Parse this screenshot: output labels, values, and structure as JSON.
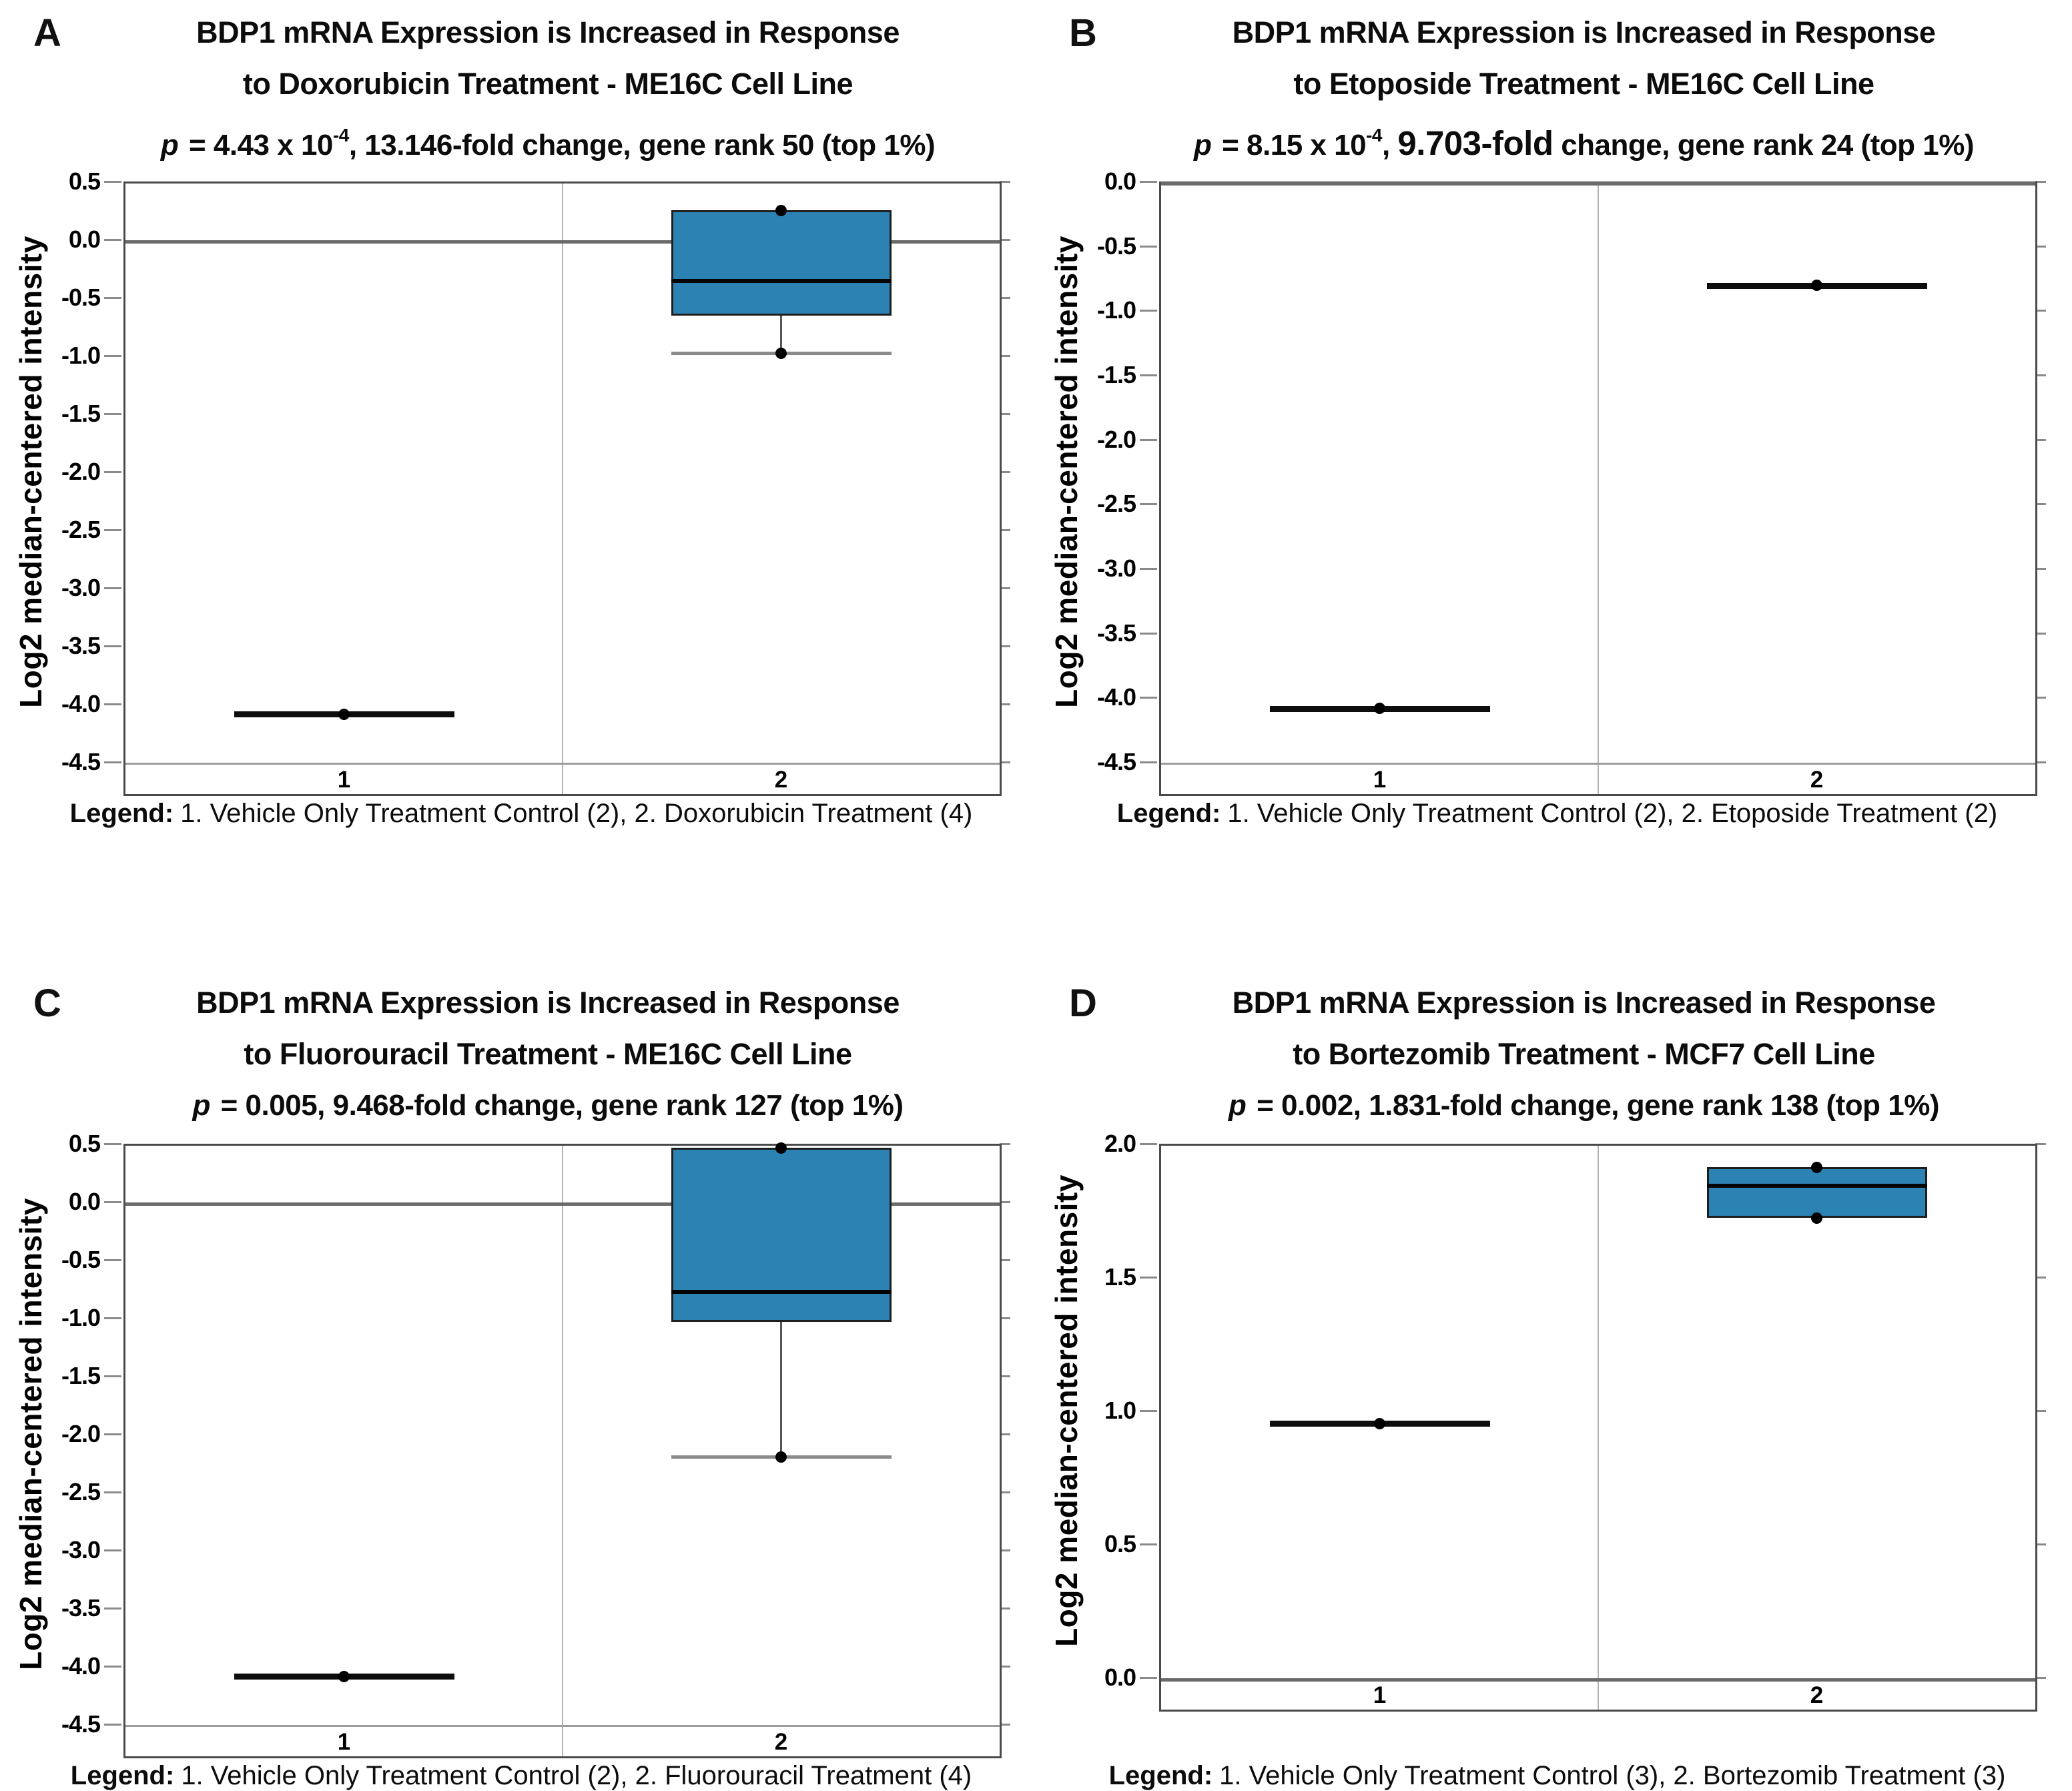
{
  "colors": {
    "box_fill": "#2d82b4",
    "box_border": "#1e1e1e",
    "frame_border": "#4a4a4a",
    "reference_strong": "#6a6a6a",
    "reference_light": "#9c9c9c",
    "divider": "#b4b4b4",
    "tick": "#8a8a8a",
    "glyph_black": "#0d0d0d",
    "text": "#000000"
  },
  "chart_data": [
    {
      "type": "box",
      "panel_label": "A",
      "title_lines": [
        "BDP1 mRNA Expression is Increased in Response",
        "to Doxorubicin Treatment - ME16C Cell Line"
      ],
      "stats": {
        "p_symbol": "p",
        "equals": " = ",
        "p_value": "4.43 x 10",
        "p_exponent": "-4",
        "separator": ", ",
        "fold_change": "13.146-fold",
        "fold_emphasized": false,
        "tail": " change, gene rank 50 (top 1%)"
      },
      "ylabel": "Log2 median-centered intensity",
      "ylim": [
        -4.5,
        0.5
      ],
      "yticks": [
        "0.5",
        "0.0",
        "-0.5",
        "-1.0",
        "-1.5",
        "-2.0",
        "-2.5",
        "-3.0",
        "-3.5",
        "-4.0",
        "-4.5"
      ],
      "ref_lines": [
        {
          "value": 0.0,
          "strong": true
        },
        {
          "value": -4.5,
          "strong": false
        }
      ],
      "categories": [
        "1",
        "2"
      ],
      "series": [
        {
          "category": "1",
          "kind": "line",
          "value": -4.07
        },
        {
          "category": "2",
          "kind": "box",
          "q3": 0.27,
          "median": -0.34,
          "q1": -0.64,
          "whisker_low": -0.96,
          "points": [
            0.27,
            -0.96
          ]
        }
      ],
      "legend": {
        "label": "Legend:",
        "text": "1. Vehicle Only Treatment Control (2), 2. Doxorubicin Treatment (4)"
      }
    },
    {
      "type": "box",
      "panel_label": "B",
      "title_lines": [
        "BDP1 mRNA Expression is Increased in Response",
        "to Etoposide Treatment - ME16C Cell Line"
      ],
      "stats": {
        "p_symbol": "p",
        "equals": " = ",
        "p_value": "8.15 x 10",
        "p_exponent": "-4",
        "separator": ", ",
        "fold_change": "9.703-fold",
        "fold_emphasized": true,
        "tail": " change, gene rank 24 (top 1%)"
      },
      "ylabel": "Log2 median-centered intensity",
      "ylim": [
        -4.5,
        0.0
      ],
      "yticks": [
        "0.0",
        "-0.5",
        "-1.0",
        "-1.5",
        "-2.0",
        "-2.5",
        "-3.0",
        "-3.5",
        "-4.0",
        "-4.5"
      ],
      "ref_lines": [
        {
          "value": 0.0,
          "strong": true
        },
        {
          "value": -4.5,
          "strong": false
        }
      ],
      "categories": [
        "1",
        "2"
      ],
      "series": [
        {
          "category": "1",
          "kind": "line",
          "value": -4.07
        },
        {
          "category": "2",
          "kind": "line",
          "value": -0.79
        }
      ],
      "legend": {
        "label": "Legend:",
        "text": "1. Vehicle Only Treatment Control (2), 2. Etoposide Treatment (2)"
      }
    },
    {
      "type": "box",
      "panel_label": "C",
      "title_lines": [
        "BDP1 mRNA Expression is Increased in Response",
        "to Fluorouracil Treatment - ME16C Cell Line"
      ],
      "stats": {
        "p_symbol": "p",
        "equals": " = ",
        "p_value": "0.005",
        "p_exponent": "",
        "separator": ", ",
        "fold_change": "9.468-fold",
        "fold_emphasized": false,
        "tail": " change, gene rank 127 (top 1%)"
      },
      "ylabel": "Log2 median-centered intensity",
      "ylim": [
        -4.5,
        0.5
      ],
      "yticks": [
        "0.5",
        "0.0",
        "-0.5",
        "-1.0",
        "-1.5",
        "-2.0",
        "-2.5",
        "-3.0",
        "-3.5",
        "-4.0",
        "-4.5"
      ],
      "ref_lines": [
        {
          "value": 0.0,
          "strong": true
        },
        {
          "value": -4.5,
          "strong": false
        }
      ],
      "categories": [
        "1",
        "2"
      ],
      "series": [
        {
          "category": "1",
          "kind": "line",
          "value": -4.07
        },
        {
          "category": "2",
          "kind": "box",
          "q3": 0.48,
          "median": -0.76,
          "q1": -1.02,
          "whisker_low": -2.18,
          "points": [
            0.48,
            -2.18
          ]
        }
      ],
      "legend": {
        "label": "Legend:",
        "text": "1. Vehicle Only Treatment Control (2), 2. Fluorouracil Treatment (4)"
      }
    },
    {
      "type": "box",
      "panel_label": "D",
      "title_lines": [
        "BDP1 mRNA Expression is Increased in Response",
        "to Bortezomib Treatment - MCF7 Cell Line"
      ],
      "stats": {
        "p_symbol": "p",
        "equals": " = ",
        "p_value": "0.002",
        "p_exponent": "",
        "separator": ", ",
        "fold_change": "1.831-fold",
        "fold_emphasized": false,
        "tail": " change, gene rank 138 (top 1%)"
      },
      "ylabel": "Log2 median-centered intensity",
      "ylim": [
        0.0,
        2.0
      ],
      "yticks": [
        "2.0",
        "1.5",
        "1.0",
        "0.5",
        "0.0"
      ],
      "ref_lines": [
        {
          "value": 0.0,
          "strong": true
        }
      ],
      "categories": [
        "1",
        "2"
      ],
      "series": [
        {
          "category": "1",
          "kind": "line",
          "value": 0.96
        },
        {
          "category": "2",
          "kind": "box",
          "q3": 1.92,
          "median": 1.85,
          "q1": 1.73,
          "whisker_low": null,
          "points": [
            1.92,
            1.73
          ]
        }
      ],
      "legend": {
        "label": "Legend:",
        "text": "1. Vehicle Only Treatment Control (3), 2. Bortezomib Treatment (3)"
      }
    }
  ]
}
